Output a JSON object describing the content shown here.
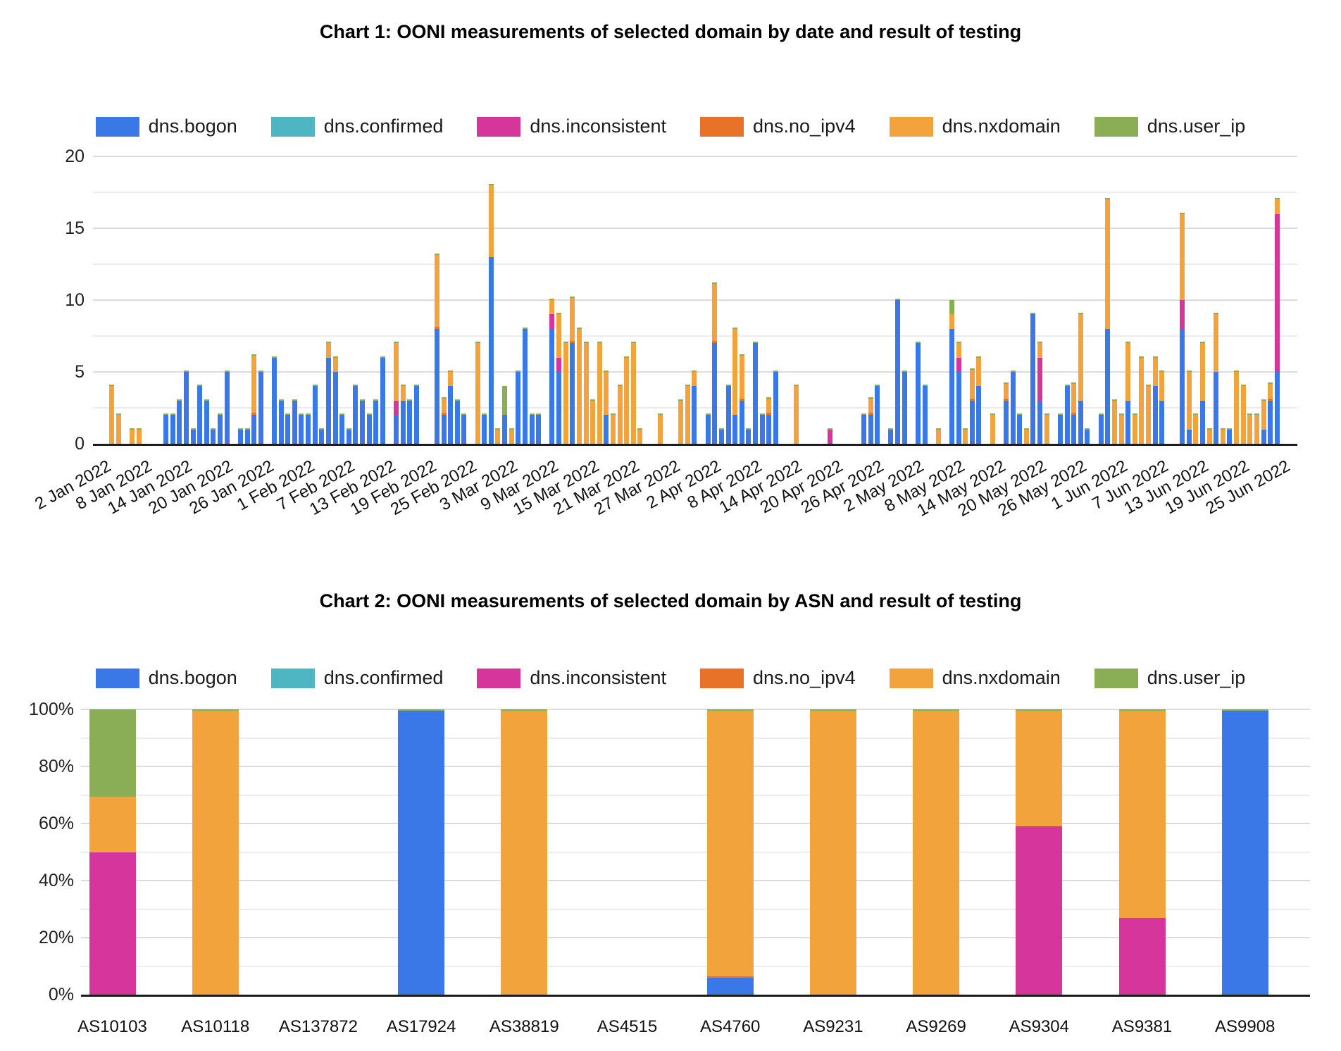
{
  "series": [
    {
      "name": "dns.bogon",
      "color": "#3B78E7"
    },
    {
      "name": "dns.confirmed",
      "color": "#4DB6C2"
    },
    {
      "name": "dns.inconsistent",
      "color": "#D6359B"
    },
    {
      "name": "dns.no_ipv4",
      "color": "#E87228"
    },
    {
      "name": "dns.nxdomain",
      "color": "#F2A33B"
    },
    {
      "name": "dns.user_ip",
      "color": "#89AE56"
    }
  ],
  "chart_data": [
    {
      "id": "chart1",
      "type": "bar",
      "stacked": true,
      "title": "Chart 1: OONI measurements of selected domain by date and result of testing",
      "ylim": [
        0,
        20
      ],
      "y_ticks": [
        0,
        5,
        10,
        15,
        20
      ],
      "grid": "on",
      "legend_position": "top",
      "n_days": 180,
      "x_tick_step_days": 6,
      "x_tick_labels": [
        "2 Jan 2022",
        "8 Jan 2022",
        "14 Jan 2022",
        "20 Jan 2022",
        "26 Jan 2022",
        "1 Feb 2022",
        "7 Feb 2022",
        "13 Feb 2022",
        "19 Feb 2022",
        "25 Feb 2022",
        "3 Mar 2022",
        "9 Mar 2022",
        "15 Mar 2022",
        "21 Mar 2022",
        "27 Mar 2022",
        "2 Apr 2022",
        "8 Apr 2022",
        "14 Apr 2022",
        "20 Apr 2022",
        "26 Apr 2022",
        "2 May 2022",
        "8 May 2022",
        "14 May 2022",
        "20 May 2022",
        "26 May 2022",
        "1 Jun 2022",
        "7 Jun 2022",
        "13 Jun 2022",
        "19 Jun 2022",
        "25 Jun 2022"
      ],
      "series_order": [
        "dns.bogon",
        "dns.confirmed",
        "dns.inconsistent",
        "dns.no_ipv4",
        "dns.nxdomain",
        "dns.user_ip"
      ],
      "bars": [
        {
          "day": 1,
          "dns.nxdomain": 4
        },
        {
          "day": 2,
          "dns.nxdomain": 2
        },
        {
          "day": 4,
          "dns.nxdomain": 1
        },
        {
          "day": 5,
          "dns.nxdomain": 1
        },
        {
          "day": 9,
          "dns.bogon": 2
        },
        {
          "day": 10,
          "dns.bogon": 2
        },
        {
          "day": 11,
          "dns.bogon": 3
        },
        {
          "day": 12,
          "dns.bogon": 5
        },
        {
          "day": 13,
          "dns.bogon": 1
        },
        {
          "day": 14,
          "dns.bogon": 4
        },
        {
          "day": 15,
          "dns.bogon": 3
        },
        {
          "day": 16,
          "dns.bogon": 1
        },
        {
          "day": 17,
          "dns.bogon": 2
        },
        {
          "day": 18,
          "dns.bogon": 5
        },
        {
          "day": 20,
          "dns.bogon": 1
        },
        {
          "day": 21,
          "dns.bogon": 1
        },
        {
          "day": 22,
          "dns.bogon": 2,
          "dns.no_ipv4": 0.15,
          "dns.nxdomain": 4
        },
        {
          "day": 23,
          "dns.bogon": 5
        },
        {
          "day": 25,
          "dns.bogon": 6
        },
        {
          "day": 26,
          "dns.bogon": 3
        },
        {
          "day": 27,
          "dns.bogon": 2
        },
        {
          "day": 28,
          "dns.bogon": 3
        },
        {
          "day": 29,
          "dns.bogon": 2
        },
        {
          "day": 30,
          "dns.bogon": 2
        },
        {
          "day": 31,
          "dns.bogon": 4
        },
        {
          "day": 32,
          "dns.bogon": 1
        },
        {
          "day": 33,
          "dns.bogon": 6,
          "dns.nxdomain": 1
        },
        {
          "day": 34,
          "dns.bogon": 5,
          "dns.nxdomain": 1
        },
        {
          "day": 35,
          "dns.bogon": 2
        },
        {
          "day": 36,
          "dns.bogon": 1
        },
        {
          "day": 37,
          "dns.bogon": 4
        },
        {
          "day": 38,
          "dns.bogon": 3
        },
        {
          "day": 39,
          "dns.bogon": 2
        },
        {
          "day": 40,
          "dns.bogon": 3
        },
        {
          "day": 41,
          "dns.bogon": 6
        },
        {
          "day": 43,
          "dns.bogon": 2,
          "dns.inconsistent": 1,
          "dns.nxdomain": 4
        },
        {
          "day": 44,
          "dns.bogon": 3,
          "dns.nxdomain": 1
        },
        {
          "day": 45,
          "dns.bogon": 3
        },
        {
          "day": 46,
          "dns.bogon": 4
        },
        {
          "day": 49,
          "dns.bogon": 8,
          "dns.no_ipv4": 0.15,
          "dns.nxdomain": 5
        },
        {
          "day": 50,
          "dns.bogon": 2,
          "dns.no_ipv4": 0.15,
          "dns.nxdomain": 1
        },
        {
          "day": 51,
          "dns.bogon": 4,
          "dns.nxdomain": 1
        },
        {
          "day": 52,
          "dns.bogon": 3
        },
        {
          "day": 53,
          "dns.bogon": 2
        },
        {
          "day": 55,
          "dns.nxdomain": 7
        },
        {
          "day": 56,
          "dns.bogon": 2
        },
        {
          "day": 57,
          "dns.bogon": 13,
          "dns.nxdomain": 5
        },
        {
          "day": 58,
          "dns.nxdomain": 1
        },
        {
          "day": 59,
          "dns.bogon": 2,
          "dns.user_ip": 2
        },
        {
          "day": 60,
          "dns.nxdomain": 1
        },
        {
          "day": 61,
          "dns.bogon": 5
        },
        {
          "day": 62,
          "dns.bogon": 8
        },
        {
          "day": 63,
          "dns.bogon": 2
        },
        {
          "day": 64,
          "dns.bogon": 2
        },
        {
          "day": 66,
          "dns.bogon": 8,
          "dns.inconsistent": 1,
          "dns.nxdomain": 1
        },
        {
          "day": 67,
          "dns.bogon": 5,
          "dns.inconsistent": 1,
          "dns.nxdomain": 3
        },
        {
          "day": 68,
          "dns.nxdomain": 7
        },
        {
          "day": 69,
          "dns.bogon": 7,
          "dns.no_ipv4": 0.15,
          "dns.nxdomain": 3
        },
        {
          "day": 70,
          "dns.nxdomain": 8
        },
        {
          "day": 71,
          "dns.nxdomain": 7
        },
        {
          "day": 72,
          "dns.nxdomain": 3
        },
        {
          "day": 73,
          "dns.nxdomain": 7
        },
        {
          "day": 74,
          "dns.bogon": 2,
          "dns.nxdomain": 3
        },
        {
          "day": 75,
          "dns.nxdomain": 2
        },
        {
          "day": 76,
          "dns.nxdomain": 4
        },
        {
          "day": 77,
          "dns.nxdomain": 6
        },
        {
          "day": 78,
          "dns.nxdomain": 7
        },
        {
          "day": 79,
          "dns.nxdomain": 1
        },
        {
          "day": 82,
          "dns.nxdomain": 2
        },
        {
          "day": 85,
          "dns.nxdomain": 3
        },
        {
          "day": 86,
          "dns.nxdomain": 4
        },
        {
          "day": 87,
          "dns.bogon": 4,
          "dns.nxdomain": 1
        },
        {
          "day": 89,
          "dns.bogon": 2
        },
        {
          "day": 90,
          "dns.bogon": 7,
          "dns.no_ipv4": 0.15,
          "dns.nxdomain": 4
        },
        {
          "day": 91,
          "dns.bogon": 1
        },
        {
          "day": 92,
          "dns.bogon": 4
        },
        {
          "day": 93,
          "dns.bogon": 2,
          "dns.nxdomain": 6
        },
        {
          "day": 94,
          "dns.bogon": 3,
          "dns.no_ipv4": 0.15,
          "dns.nxdomain": 3
        },
        {
          "day": 95,
          "dns.bogon": 1
        },
        {
          "day": 96,
          "dns.bogon": 7
        },
        {
          "day": 97,
          "dns.bogon": 2
        },
        {
          "day": 98,
          "dns.bogon": 2,
          "dns.no_ipv4": 0.15,
          "dns.nxdomain": 1
        },
        {
          "day": 99,
          "dns.bogon": 5
        },
        {
          "day": 102,
          "dns.nxdomain": 4
        },
        {
          "day": 107,
          "dns.inconsistent": 1
        },
        {
          "day": 112,
          "dns.bogon": 2
        },
        {
          "day": 113,
          "dns.bogon": 2,
          "dns.no_ipv4": 0.15,
          "dns.nxdomain": 1
        },
        {
          "day": 114,
          "dns.bogon": 4
        },
        {
          "day": 116,
          "dns.bogon": 1
        },
        {
          "day": 117,
          "dns.bogon": 10
        },
        {
          "day": 118,
          "dns.bogon": 5
        },
        {
          "day": 120,
          "dns.bogon": 7
        },
        {
          "day": 121,
          "dns.bogon": 4
        },
        {
          "day": 123,
          "dns.nxdomain": 1
        },
        {
          "day": 125,
          "dns.bogon": 8,
          "dns.nxdomain": 1,
          "dns.user_ip": 1
        },
        {
          "day": 126,
          "dns.bogon": 5,
          "dns.inconsistent": 1,
          "dns.nxdomain": 1
        },
        {
          "day": 127,
          "dns.nxdomain": 1
        },
        {
          "day": 128,
          "dns.bogon": 3,
          "dns.no_ipv4": 0.15,
          "dns.nxdomain": 2
        },
        {
          "day": 129,
          "dns.bogon": 4,
          "dns.nxdomain": 2
        },
        {
          "day": 131,
          "dns.nxdomain": 2
        },
        {
          "day": 133,
          "dns.bogon": 3,
          "dns.no_ipv4": 0.15,
          "dns.nxdomain": 1
        },
        {
          "day": 134,
          "dns.bogon": 5
        },
        {
          "day": 135,
          "dns.bogon": 2
        },
        {
          "day": 136,
          "dns.nxdomain": 1
        },
        {
          "day": 137,
          "dns.bogon": 9
        },
        {
          "day": 138,
          "dns.bogon": 3,
          "dns.inconsistent": 3,
          "dns.nxdomain": 1
        },
        {
          "day": 139,
          "dns.nxdomain": 2
        },
        {
          "day": 141,
          "dns.bogon": 2
        },
        {
          "day": 142,
          "dns.bogon": 4
        },
        {
          "day": 143,
          "dns.bogon": 2,
          "dns.no_ipv4": 0.15,
          "dns.nxdomain": 2
        },
        {
          "day": 144,
          "dns.bogon": 3,
          "dns.nxdomain": 6
        },
        {
          "day": 145,
          "dns.bogon": 1
        },
        {
          "day": 147,
          "dns.bogon": 2
        },
        {
          "day": 148,
          "dns.bogon": 8,
          "dns.nxdomain": 9
        },
        {
          "day": 149,
          "dns.nxdomain": 3
        },
        {
          "day": 150,
          "dns.nxdomain": 2
        },
        {
          "day": 151,
          "dns.bogon": 3,
          "dns.nxdomain": 4
        },
        {
          "day": 152,
          "dns.nxdomain": 2
        },
        {
          "day": 153,
          "dns.nxdomain": 6
        },
        {
          "day": 154,
          "dns.nxdomain": 4
        },
        {
          "day": 155,
          "dns.bogon": 4,
          "dns.nxdomain": 2
        },
        {
          "day": 156,
          "dns.bogon": 3,
          "dns.nxdomain": 2
        },
        {
          "day": 159,
          "dns.bogon": 8,
          "dns.inconsistent": 2,
          "dns.nxdomain": 6
        },
        {
          "day": 160,
          "dns.bogon": 1,
          "dns.nxdomain": 4
        },
        {
          "day": 161,
          "dns.nxdomain": 2
        },
        {
          "day": 162,
          "dns.bogon": 3,
          "dns.nxdomain": 4
        },
        {
          "day": 163,
          "dns.nxdomain": 1
        },
        {
          "day": 164,
          "dns.bogon": 5,
          "dns.nxdomain": 4
        },
        {
          "day": 165,
          "dns.nxdomain": 1
        },
        {
          "day": 166,
          "dns.bogon": 1
        },
        {
          "day": 167,
          "dns.nxdomain": 5
        },
        {
          "day": 168,
          "dns.nxdomain": 4
        },
        {
          "day": 169,
          "dns.nxdomain": 2
        },
        {
          "day": 170,
          "dns.nxdomain": 2
        },
        {
          "day": 171,
          "dns.bogon": 1,
          "dns.nxdomain": 2
        },
        {
          "day": 172,
          "dns.bogon": 3,
          "dns.no_ipv4": 0.15,
          "dns.nxdomain": 1
        },
        {
          "day": 173,
          "dns.bogon": 5,
          "dns.inconsistent": 11,
          "dns.nxdomain": 1
        }
      ]
    },
    {
      "id": "chart2",
      "type": "bar",
      "stacked": true,
      "percent": true,
      "title": "Chart 2: OONI measurements of selected domain by ASN and result of testing",
      "ylim": [
        0,
        100
      ],
      "y_ticks": [
        0,
        20,
        40,
        60,
        80,
        100
      ],
      "y_tick_labels": [
        "0%",
        "20%",
        "40%",
        "60%",
        "80%",
        "100%"
      ],
      "grid": "on",
      "legend_position": "top",
      "categories": [
        "AS10103",
        "AS10118",
        "AS137872",
        "AS17924",
        "AS38819",
        "AS4515",
        "AS4760",
        "AS9231",
        "AS9269",
        "AS9304",
        "AS9381",
        "AS9908"
      ],
      "series": [
        {
          "name": "dns.bogon",
          "values": [
            0,
            0,
            0,
            99.5,
            0,
            0,
            6,
            0,
            0,
            0,
            0,
            99.5
          ]
        },
        {
          "name": "dns.confirmed",
          "values": [
            0,
            0,
            0,
            0,
            0,
            0,
            0,
            0,
            0,
            0,
            0,
            0
          ]
        },
        {
          "name": "dns.inconsistent",
          "values": [
            50,
            0,
            0,
            0,
            0,
            0,
            0,
            0,
            0,
            59,
            27,
            0
          ]
        },
        {
          "name": "dns.no_ipv4",
          "values": [
            0,
            0,
            0,
            0,
            0,
            0,
            0.5,
            0,
            0,
            0,
            0,
            0
          ]
        },
        {
          "name": "dns.nxdomain",
          "values": [
            19.5,
            99.5,
            0,
            0,
            99.5,
            0,
            93,
            99.5,
            99.5,
            40.5,
            72.5,
            0
          ]
        },
        {
          "name": "dns.user_ip",
          "values": [
            30.5,
            0.5,
            0,
            0.5,
            0.5,
            0,
            0.5,
            0.5,
            0.5,
            0.5,
            0.5,
            0.5
          ]
        }
      ]
    }
  ]
}
